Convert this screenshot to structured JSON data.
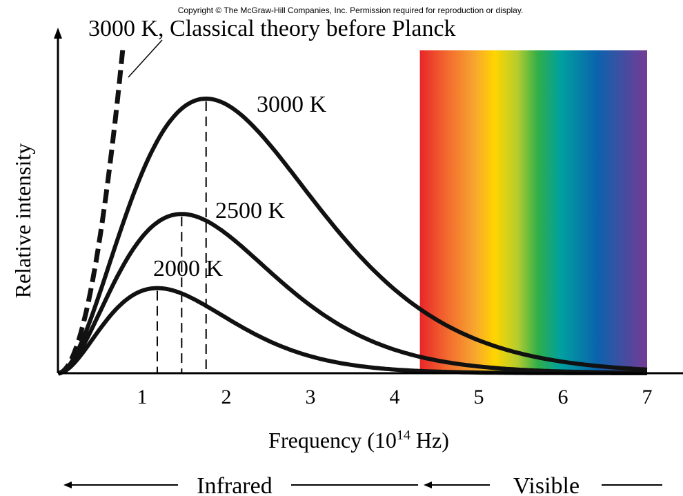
{
  "copyright": "Copyright © The McGraw-Hill Companies, Inc. Permission required for reproduction or display.",
  "classical_label": "3000 K, Classical theory before Planck",
  "regions": {
    "infrared": "Infrared",
    "visible": "Visible"
  },
  "chart_data": {
    "type": "line",
    "xlabel_main": "Frequency (10",
    "xlabel_exp": "14",
    "xlabel_unit": " Hz)",
    "ylabel": "Relative intensity",
    "xlim": [
      0,
      7.2
    ],
    "ylim": [
      0,
      1.08
    ],
    "x_ticks": [
      1,
      2,
      3,
      4,
      5,
      6,
      7
    ],
    "visible_band": [
      4.3,
      7.0
    ],
    "series": [
      {
        "name": "3000 K",
        "temperature": 3000,
        "peak_x": 1.76,
        "peak_y": 1.0
      },
      {
        "name": "2500 K",
        "temperature": 2500,
        "peak_x": 1.47,
        "peak_y": 0.58
      },
      {
        "name": "2000 K",
        "temperature": 2000,
        "peak_x": 1.18,
        "peak_y": 0.31
      }
    ],
    "classical_series": {
      "temperature": 3000,
      "style": "dashed",
      "x_end": 0.77,
      "y_end": 1.18
    }
  }
}
